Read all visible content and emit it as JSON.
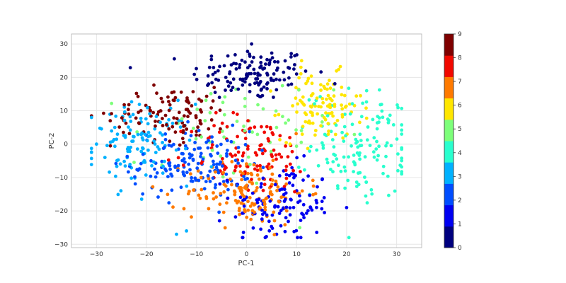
{
  "chart_data": {
    "type": "scatter",
    "xlabel": "PC-1",
    "ylabel": "PC-2",
    "xlim": [
      -35,
      35
    ],
    "ylim": [
      -31,
      33
    ],
    "xticks": [
      -30,
      -20,
      -10,
      0,
      10,
      20,
      30
    ],
    "yticks": [
      -30,
      -20,
      -10,
      0,
      10,
      20,
      30
    ],
    "tick_labels_x": [
      "−30",
      "−20",
      "−10",
      "0",
      "10",
      "20",
      "30"
    ],
    "tick_labels_y": [
      "−30",
      "−20",
      "−10",
      "0",
      "10",
      "20",
      "30"
    ],
    "grid": true,
    "colorbar": {
      "min": 0,
      "max": 9,
      "tick_labels": [
        "0",
        "1",
        "2",
        "3",
        "4",
        "5",
        "6",
        "7",
        "8",
        "9"
      ],
      "colors": [
        "#00007f",
        "#0000f1",
        "#004dff",
        "#00b1ff",
        "#29ffce",
        "#7dff7a",
        "#ffe600",
        "#ff7a00",
        "#f10800",
        "#7f0000"
      ]
    },
    "clusters": [
      {
        "label": 0,
        "cx": 1,
        "cy": 21,
        "sx": 6,
        "sy": 4,
        "n": 130
      },
      {
        "label": 1,
        "cx": 7,
        "cy": -18,
        "sx": 5,
        "sy": 6,
        "n": 120
      },
      {
        "label": 2,
        "cx": -11,
        "cy": -6,
        "sx": 6,
        "sy": 5,
        "n": 150
      },
      {
        "label": 3,
        "cx": -21,
        "cy": 0,
        "sx": 5,
        "sy": 6,
        "n": 120
      },
      {
        "label": 4,
        "cx": 23,
        "cy": 0,
        "sx": 5,
        "sy": 8,
        "n": 140
      },
      {
        "label": 5,
        "cx": -3,
        "cy": 2,
        "sx": 10,
        "sy": 9,
        "n": 60
      },
      {
        "label": 6,
        "cx": 15,
        "cy": 11,
        "sx": 4,
        "sy": 5,
        "n": 110
      },
      {
        "label": 7,
        "cx": 0,
        "cy": -14,
        "sx": 6,
        "sy": 5,
        "n": 150
      },
      {
        "label": 8,
        "cx": 1,
        "cy": -3,
        "sx": 6,
        "sy": 6,
        "n": 110
      },
      {
        "label": 9,
        "cx": -15,
        "cy": 9,
        "sx": 6,
        "sy": 4,
        "n": 110
      }
    ],
    "outliers": [
      {
        "x": 1,
        "y": 30,
        "label": 0
      },
      {
        "x": -31,
        "y": 8,
        "label": 3
      },
      {
        "x": -30,
        "y": 0,
        "label": 3
      },
      {
        "x": 31,
        "y": 3,
        "label": 4
      },
      {
        "x": -14,
        "y": -27,
        "label": 3
      },
      {
        "x": -12,
        "y": -26,
        "label": 3
      },
      {
        "x": 20,
        "y": -19,
        "label": 1
      },
      {
        "x": 11,
        "y": 25,
        "label": 6
      },
      {
        "x": 6,
        "y": -27,
        "label": 1
      },
      {
        "x": 10,
        "y": 21,
        "label": 0
      }
    ]
  }
}
